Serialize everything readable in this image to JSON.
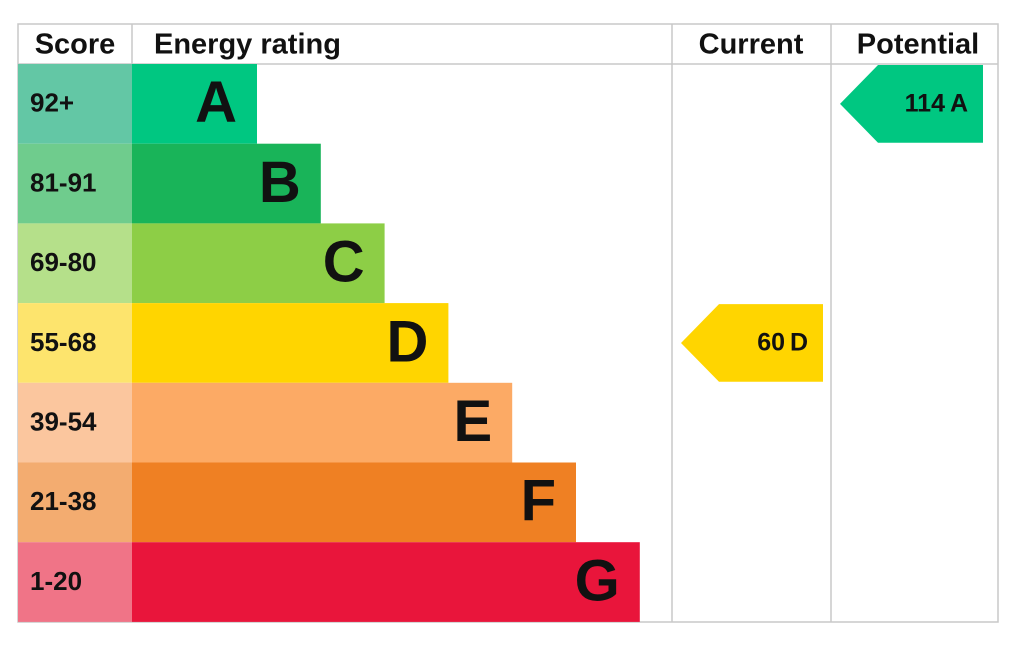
{
  "header": {
    "score": "Score",
    "rating": "Energy rating",
    "current": "Current",
    "potential": "Potential"
  },
  "rows": [
    {
      "score": "92+",
      "letter": "A",
      "color": "#00c781",
      "score_color": "#63c7a5"
    },
    {
      "score": "81-91",
      "letter": "B",
      "color": "#19b459",
      "score_color": "#6fcc8d"
    },
    {
      "score": "69-80",
      "letter": "C",
      "color": "#8dce46",
      "score_color": "#b5e08a"
    },
    {
      "score": "55-68",
      "letter": "D",
      "color": "#ffd500",
      "score_color": "#fde46d"
    },
    {
      "score": "39-54",
      "letter": "E",
      "color": "#fcaa65",
      "score_color": "#fbc69e"
    },
    {
      "score": "21-38",
      "letter": "F",
      "color": "#ef8023",
      "score_color": "#f3ac70"
    },
    {
      "score": "1-20",
      "letter": "G",
      "color": "#e9153b",
      "score_color": "#f07487"
    }
  ],
  "current": {
    "value": 60,
    "letter": "D"
  },
  "potential": {
    "value": 114,
    "letter": "A"
  }
}
